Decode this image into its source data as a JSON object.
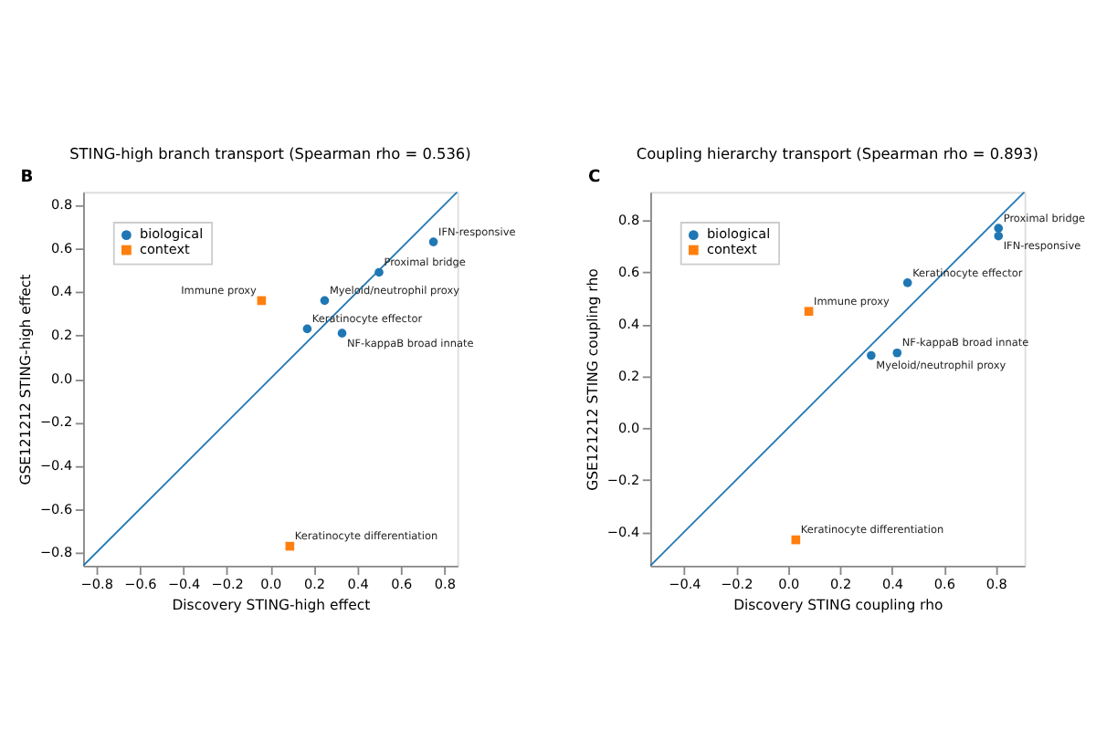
{
  "chart_data": [
    {
      "type": "scatter",
      "title": "STING-high branch transport (Spearman rho = 0.536)",
      "xlabel": "Discovery STING-high effect",
      "ylabel": "GSE121212 STING-high effect",
      "xlim": [
        -0.86,
        0.86
      ],
      "ylim": [
        -0.86,
        0.86
      ],
      "xticks": [
        -0.8,
        -0.6,
        -0.4,
        -0.2,
        {
          "value": 0,
          "label": "0.0"
        },
        0.2,
        0.4,
        0.6,
        0.8
      ],
      "yticks": [
        -0.8,
        -0.6,
        -0.4,
        -0.2,
        {
          "value": 0,
          "label": "0.0"
        },
        0.2,
        0.4,
        0.6,
        0.8
      ],
      "legend": "top left",
      "grid": false,
      "series": [
        {
          "type": "line",
          "color": "#1f77b4",
          "x": [
            -0.86,
            0.86
          ],
          "values": [
            -0.86,
            0.86
          ]
        },
        {
          "name": "biological",
          "color": "#1f77b4",
          "marker": "circle",
          "x": [
            0.75,
            0.5,
            0.25,
            0.17,
            0.33
          ],
          "values": [
            0.63,
            0.49,
            0.36,
            0.23,
            0.21
          ]
        },
        {
          "name": "context",
          "color": "#ff7f0e",
          "marker": "square",
          "x": [
            -0.04,
            0.09
          ],
          "values": [
            0.36,
            -0.77
          ]
        }
      ],
      "annotations": [
        "B",
        {
          "text": "IFN-responsive",
          "x": 0.75,
          "y": 0.63
        },
        {
          "text": "Proximal bridge",
          "x": 0.5,
          "y": 0.49
        },
        {
          "text": "Myeloid/neutrophil proxy",
          "x": 0.25,
          "y": 0.36
        },
        {
          "text": "Keratinocyte effector",
          "x": 0.17,
          "y": 0.23
        },
        {
          "text": "Immune proxy",
          "x": -0.04,
          "y": 0.36
        },
        {
          "text": "NF-kappaB broad innate",
          "x": 0.33,
          "y": 0.21
        },
        {
          "text": "Keratinocyte differentiation",
          "x": 0.09,
          "y": -0.77
        }
      ]
    },
    {
      "type": "scatter",
      "title": "Coupling hierarchy transport (Spearman rho = 0.893)",
      "xlabel": "Discovery STING coupling rho",
      "ylabel": "GSE121212 STING coupling rho",
      "xlim": [
        -0.53,
        0.91
      ],
      "ylim": [
        -0.53,
        0.91
      ],
      "xticks": [
        -0.4,
        -0.2,
        {
          "value": 0,
          "label": "0.0"
        },
        0.2,
        0.4,
        0.6,
        0.8
      ],
      "yticks": [
        -0.4,
        -0.2,
        {
          "value": 0,
          "label": "0.0"
        },
        0.2,
        0.4,
        0.6,
        0.8
      ],
      "legend": "top left",
      "grid": false,
      "series": [
        {
          "type": "line",
          "color": "#1f77b4",
          "x": [
            -0.53,
            0.91
          ],
          "values": [
            -0.53,
            0.91
          ]
        },
        {
          "name": "biological",
          "color": "#1f77b4",
          "marker": "circle",
          "x": [
            0.81,
            0.81,
            0.46,
            0.42,
            0.32
          ],
          "values": [
            0.77,
            0.74,
            0.56,
            0.29,
            0.28
          ]
        },
        {
          "name": "context",
          "color": "#ff7f0e",
          "marker": "square",
          "x": [
            0.08,
            0.03
          ],
          "values": [
            0.45,
            -0.43
          ]
        }
      ],
      "annotations": [
        "C",
        {
          "text": "Proximal bridge",
          "x": 0.81,
          "y": 0.77
        },
        {
          "text": "IFN-responsive",
          "x": 0.81,
          "y": 0.74
        },
        {
          "text": "Keratinocyte effector",
          "x": 0.46,
          "y": 0.56
        },
        {
          "text": "Immune proxy",
          "x": 0.08,
          "y": 0.45
        },
        {
          "text": "NF-kappaB broad innate",
          "x": 0.42,
          "y": 0.29
        },
        {
          "text": "Myeloid/neutrophil proxy",
          "x": 0.32,
          "y": 0.28
        },
        {
          "text": "Keratinocyte differentiation",
          "x": 0.03,
          "y": -0.43
        }
      ]
    }
  ]
}
